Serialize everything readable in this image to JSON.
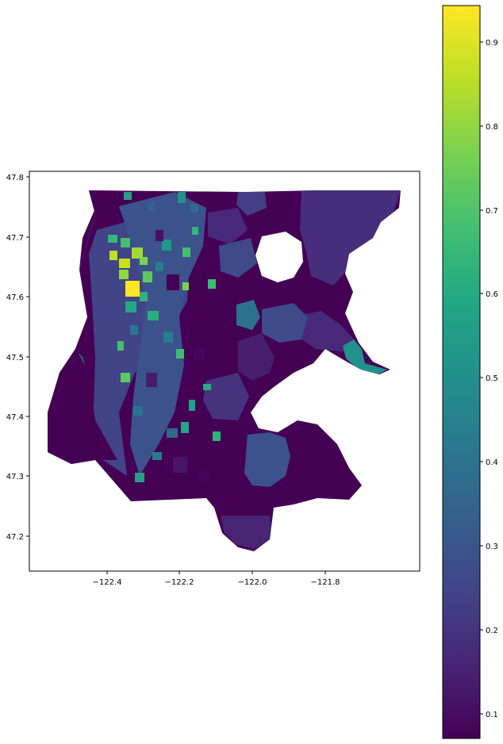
{
  "chart_data": {
    "type": "choropleth",
    "title": "",
    "xlabel": "",
    "ylabel": "",
    "x_ticks": [
      "−122.4",
      "−122.2",
      "−122.0",
      "−121.8"
    ],
    "y_ticks": [
      "47.2",
      "47.3",
      "47.4",
      "47.5",
      "47.6",
      "47.7",
      "47.8"
    ],
    "x_tick_values": [
      -122.4,
      -122.2,
      -122.0,
      -121.8
    ],
    "y_tick_values": [
      47.2,
      47.3,
      47.4,
      47.5,
      47.6,
      47.7,
      47.8
    ],
    "xlim": [
      -122.57,
      -121.63
    ],
    "ylim": [
      47.14,
      47.81
    ],
    "colorbar": {
      "colormap": "viridis",
      "range": [
        0.07,
        0.94
      ],
      "ticks": [
        "0.1",
        "0.2",
        "0.3",
        "0.4",
        "0.5",
        "0.6",
        "0.7",
        "0.8",
        "0.9"
      ],
      "tick_values": [
        0.1,
        0.2,
        0.3,
        0.4,
        0.5,
        0.6,
        0.7,
        0.8,
        0.9
      ]
    },
    "grid": false,
    "legend": "colorbar right"
  }
}
